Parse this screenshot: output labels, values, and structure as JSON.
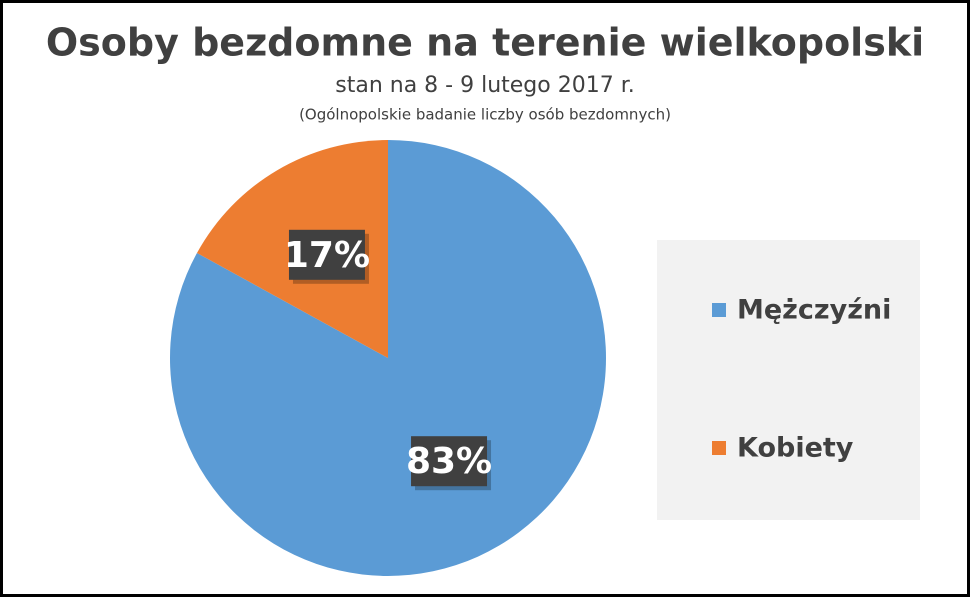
{
  "chart_data": {
    "type": "pie",
    "title": "Osoby bezdomne na terenie wielkopolski",
    "subtitle": "stan na 8 - 9 lutego 2017 r.",
    "note": "(Ogólnopolskie badanie liczby osób bezdomnych)",
    "categories": [
      "Mężczyźni",
      "Kobiety"
    ],
    "values": [
      83,
      17
    ],
    "value_labels": [
      "83%",
      "17%"
    ],
    "colors": [
      "#5b9bd5",
      "#ed7d31"
    ],
    "legend": "right"
  }
}
